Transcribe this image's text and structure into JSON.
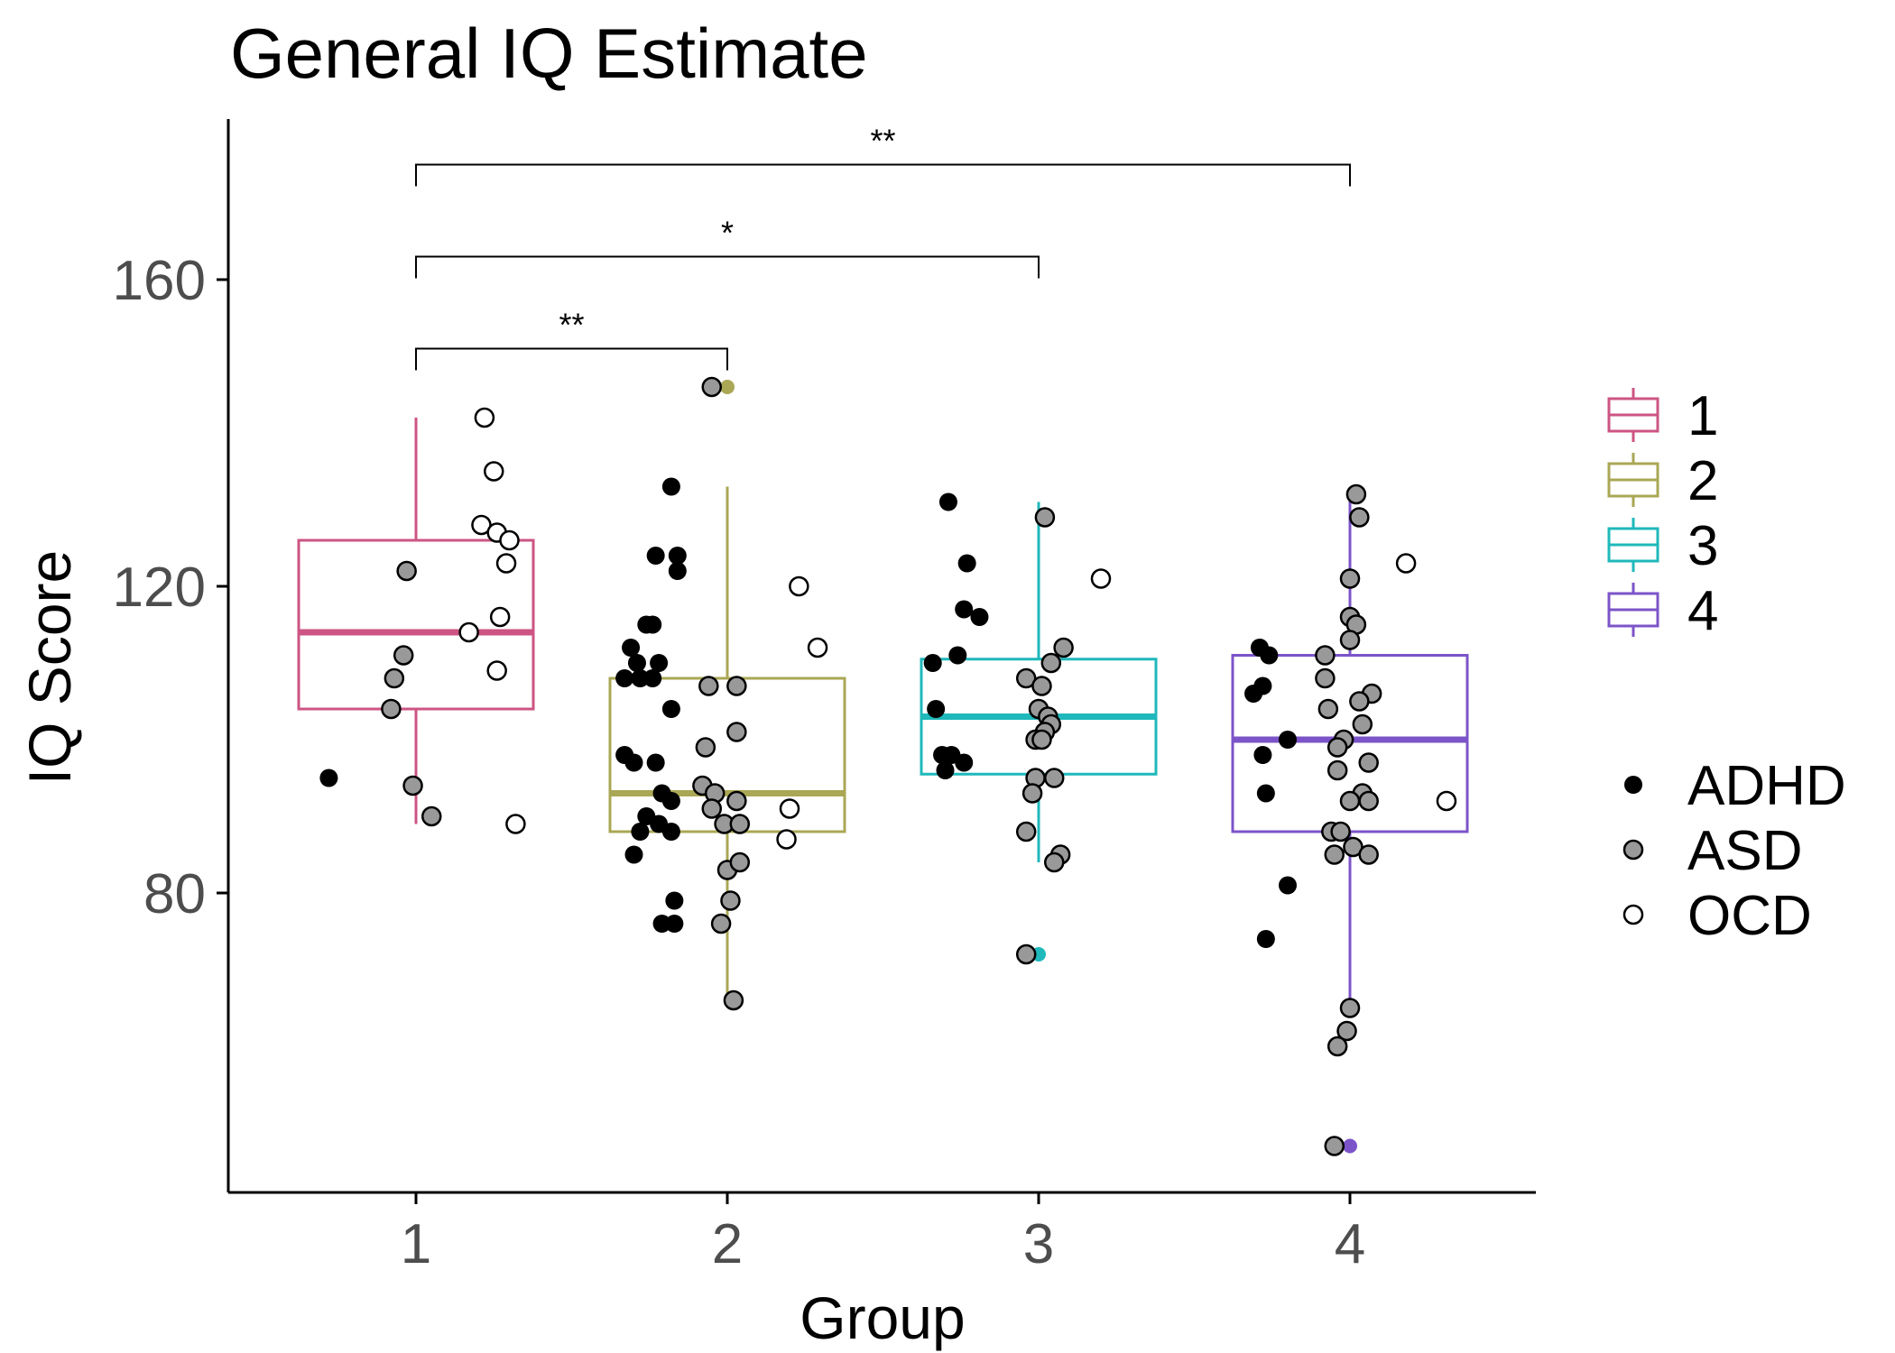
{
  "chart_data": {
    "type": "boxplot",
    "title": "General IQ Estimate",
    "xlabel": "Group",
    "ylabel": "IQ Score",
    "ylim": [
      42,
      181
    ],
    "yticks": [
      80,
      120,
      160
    ],
    "categories": [
      "1",
      "2",
      "3",
      "4"
    ],
    "colors": {
      "1": "#cc5583",
      "2": "#aaa755",
      "3": "#1fb8bb",
      "4": "#7c54c9"
    },
    "boxes": [
      {
        "group": "1",
        "q1": 104,
        "median": 114,
        "q3": 126,
        "whisker_low": 89,
        "whisker_high": 142,
        "outliers": []
      },
      {
        "group": "2",
        "q1": 88,
        "median": 93,
        "q3": 108,
        "whisker_low": 66,
        "whisker_high": 133,
        "outliers": [
          146
        ]
      },
      {
        "group": "3",
        "q1": 95.5,
        "median": 103,
        "q3": 110.5,
        "whisker_low": 84,
        "whisker_high": 131,
        "outliers": [
          72
        ]
      },
      {
        "group": "4",
        "q1": 88,
        "median": 100,
        "q3": 111,
        "whisker_low": 65,
        "whisker_high": 132,
        "outliers": [
          47
        ]
      }
    ],
    "diagnosis_styles": {
      "ADHD": "#000000",
      "ASD": "#999999",
      "OCD": "#ffffff"
    },
    "points": [
      {
        "x": 0.72,
        "y": 95,
        "dx": "ADHD"
      },
      {
        "x": 0.97,
        "y": 122,
        "dx": "ASD"
      },
      {
        "x": 0.96,
        "y": 111,
        "dx": "ASD"
      },
      {
        "x": 0.93,
        "y": 108,
        "dx": "ASD"
      },
      {
        "x": 0.92,
        "y": 104,
        "dx": "ASD"
      },
      {
        "x": 0.99,
        "y": 94,
        "dx": "ASD"
      },
      {
        "x": 1.05,
        "y": 90,
        "dx": "ASD"
      },
      {
        "x": 1.22,
        "y": 142,
        "dx": "OCD"
      },
      {
        "x": 1.25,
        "y": 135,
        "dx": "OCD"
      },
      {
        "x": 1.21,
        "y": 128,
        "dx": "OCD"
      },
      {
        "x": 1.26,
        "y": 127,
        "dx": "OCD"
      },
      {
        "x": 1.3,
        "y": 126,
        "dx": "OCD"
      },
      {
        "x": 1.29,
        "y": 123,
        "dx": "OCD"
      },
      {
        "x": 1.27,
        "y": 116,
        "dx": "OCD"
      },
      {
        "x": 1.17,
        "y": 114,
        "dx": "OCD"
      },
      {
        "x": 1.26,
        "y": 109,
        "dx": "OCD"
      },
      {
        "x": 1.32,
        "y": 89,
        "dx": "OCD"
      },
      {
        "x": 1.82,
        "y": 133,
        "dx": "ADHD"
      },
      {
        "x": 1.77,
        "y": 124,
        "dx": "ADHD"
      },
      {
        "x": 1.84,
        "y": 124,
        "dx": "ADHD"
      },
      {
        "x": 1.84,
        "y": 122,
        "dx": "ADHD"
      },
      {
        "x": 1.74,
        "y": 115,
        "dx": "ADHD"
      },
      {
        "x": 1.76,
        "y": 115,
        "dx": "ADHD"
      },
      {
        "x": 1.69,
        "y": 112,
        "dx": "ADHD"
      },
      {
        "x": 1.71,
        "y": 110,
        "dx": "ADHD"
      },
      {
        "x": 1.78,
        "y": 110,
        "dx": "ADHD"
      },
      {
        "x": 1.67,
        "y": 108,
        "dx": "ADHD"
      },
      {
        "x": 1.72,
        "y": 108,
        "dx": "ADHD"
      },
      {
        "x": 1.76,
        "y": 108,
        "dx": "ADHD"
      },
      {
        "x": 1.82,
        "y": 104,
        "dx": "ADHD"
      },
      {
        "x": 1.67,
        "y": 98,
        "dx": "ADHD"
      },
      {
        "x": 1.7,
        "y": 97,
        "dx": "ADHD"
      },
      {
        "x": 1.77,
        "y": 97,
        "dx": "ADHD"
      },
      {
        "x": 1.79,
        "y": 93,
        "dx": "ADHD"
      },
      {
        "x": 1.82,
        "y": 92,
        "dx": "ADHD"
      },
      {
        "x": 1.74,
        "y": 90,
        "dx": "ADHD"
      },
      {
        "x": 1.78,
        "y": 89,
        "dx": "ADHD"
      },
      {
        "x": 1.72,
        "y": 88,
        "dx": "ADHD"
      },
      {
        "x": 1.82,
        "y": 88,
        "dx": "ADHD"
      },
      {
        "x": 1.7,
        "y": 85,
        "dx": "ADHD"
      },
      {
        "x": 1.83,
        "y": 79,
        "dx": "ADHD"
      },
      {
        "x": 1.79,
        "y": 76,
        "dx": "ADHD"
      },
      {
        "x": 1.83,
        "y": 76,
        "dx": "ADHD"
      },
      {
        "x": 1.95,
        "y": 146,
        "dx": "ASD"
      },
      {
        "x": 1.94,
        "y": 107,
        "dx": "ASD"
      },
      {
        "x": 1.93,
        "y": 99,
        "dx": "ASD"
      },
      {
        "x": 1.92,
        "y": 94,
        "dx": "ASD"
      },
      {
        "x": 1.96,
        "y": 93,
        "dx": "ASD"
      },
      {
        "x": 1.95,
        "y": 91,
        "dx": "ASD"
      },
      {
        "x": 1.99,
        "y": 89,
        "dx": "ASD"
      },
      {
        "x": 2.0,
        "y": 83,
        "dx": "ASD"
      },
      {
        "x": 2.01,
        "y": 79,
        "dx": "ASD"
      },
      {
        "x": 1.98,
        "y": 76,
        "dx": "ASD"
      },
      {
        "x": 2.02,
        "y": 66,
        "dx": "ASD"
      },
      {
        "x": 2.03,
        "y": 107,
        "dx": "ASD"
      },
      {
        "x": 2.03,
        "y": 101,
        "dx": "ASD"
      },
      {
        "x": 2.03,
        "y": 92,
        "dx": "ASD"
      },
      {
        "x": 2.04,
        "y": 89,
        "dx": "ASD"
      },
      {
        "x": 2.04,
        "y": 84,
        "dx": "ASD"
      },
      {
        "x": 2.23,
        "y": 120,
        "dx": "OCD"
      },
      {
        "x": 2.29,
        "y": 112,
        "dx": "OCD"
      },
      {
        "x": 2.2,
        "y": 91,
        "dx": "OCD"
      },
      {
        "x": 2.19,
        "y": 87,
        "dx": "OCD"
      },
      {
        "x": 2.71,
        "y": 131,
        "dx": "ADHD"
      },
      {
        "x": 2.77,
        "y": 123,
        "dx": "ADHD"
      },
      {
        "x": 2.76,
        "y": 117,
        "dx": "ADHD"
      },
      {
        "x": 2.81,
        "y": 116,
        "dx": "ADHD"
      },
      {
        "x": 2.74,
        "y": 111,
        "dx": "ADHD"
      },
      {
        "x": 2.66,
        "y": 110,
        "dx": "ADHD"
      },
      {
        "x": 2.67,
        "y": 104,
        "dx": "ADHD"
      },
      {
        "x": 2.69,
        "y": 98,
        "dx": "ADHD"
      },
      {
        "x": 2.72,
        "y": 98,
        "dx": "ADHD"
      },
      {
        "x": 2.76,
        "y": 97,
        "dx": "ADHD"
      },
      {
        "x": 2.7,
        "y": 96,
        "dx": "ADHD"
      },
      {
        "x": 3.02,
        "y": 129,
        "dx": "ASD"
      },
      {
        "x": 3.08,
        "y": 112,
        "dx": "ASD"
      },
      {
        "x": 3.04,
        "y": 110,
        "dx": "ASD"
      },
      {
        "x": 2.96,
        "y": 108,
        "dx": "ASD"
      },
      {
        "x": 3.01,
        "y": 107,
        "dx": "ASD"
      },
      {
        "x": 3.0,
        "y": 104,
        "dx": "ASD"
      },
      {
        "x": 3.03,
        "y": 103,
        "dx": "ASD"
      },
      {
        "x": 3.04,
        "y": 102,
        "dx": "ASD"
      },
      {
        "x": 3.02,
        "y": 101,
        "dx": "ASD"
      },
      {
        "x": 2.99,
        "y": 100,
        "dx": "ASD"
      },
      {
        "x": 3.01,
        "y": 100,
        "dx": "ASD"
      },
      {
        "x": 2.99,
        "y": 95,
        "dx": "ASD"
      },
      {
        "x": 3.05,
        "y": 95,
        "dx": "ASD"
      },
      {
        "x": 2.98,
        "y": 93,
        "dx": "ASD"
      },
      {
        "x": 2.96,
        "y": 88,
        "dx": "ASD"
      },
      {
        "x": 3.07,
        "y": 85,
        "dx": "ASD"
      },
      {
        "x": 3.05,
        "y": 84,
        "dx": "ASD"
      },
      {
        "x": 2.96,
        "y": 72,
        "dx": "ASD"
      },
      {
        "x": 3.2,
        "y": 121,
        "dx": "OCD"
      },
      {
        "x": 3.71,
        "y": 112,
        "dx": "ADHD"
      },
      {
        "x": 3.74,
        "y": 111,
        "dx": "ADHD"
      },
      {
        "x": 3.72,
        "y": 107,
        "dx": "ADHD"
      },
      {
        "x": 3.69,
        "y": 106,
        "dx": "ADHD"
      },
      {
        "x": 3.8,
        "y": 100,
        "dx": "ADHD"
      },
      {
        "x": 3.72,
        "y": 98,
        "dx": "ADHD"
      },
      {
        "x": 3.73,
        "y": 93,
        "dx": "ADHD"
      },
      {
        "x": 3.8,
        "y": 81,
        "dx": "ADHD"
      },
      {
        "x": 3.73,
        "y": 74,
        "dx": "ADHD"
      },
      {
        "x": 4.02,
        "y": 132,
        "dx": "ASD"
      },
      {
        "x": 4.03,
        "y": 129,
        "dx": "ASD"
      },
      {
        "x": 4.0,
        "y": 121,
        "dx": "ASD"
      },
      {
        "x": 4.0,
        "y": 116,
        "dx": "ASD"
      },
      {
        "x": 4.02,
        "y": 115,
        "dx": "ASD"
      },
      {
        "x": 4.0,
        "y": 113,
        "dx": "ASD"
      },
      {
        "x": 3.92,
        "y": 111,
        "dx": "ASD"
      },
      {
        "x": 3.92,
        "y": 108,
        "dx": "ASD"
      },
      {
        "x": 4.07,
        "y": 106,
        "dx": "ASD"
      },
      {
        "x": 4.03,
        "y": 105,
        "dx": "ASD"
      },
      {
        "x": 3.93,
        "y": 104,
        "dx": "ASD"
      },
      {
        "x": 4.04,
        "y": 102,
        "dx": "ASD"
      },
      {
        "x": 3.98,
        "y": 100,
        "dx": "ASD"
      },
      {
        "x": 3.96,
        "y": 99,
        "dx": "ASD"
      },
      {
        "x": 4.06,
        "y": 97,
        "dx": "ASD"
      },
      {
        "x": 3.96,
        "y": 96,
        "dx": "ASD"
      },
      {
        "x": 4.04,
        "y": 93,
        "dx": "ASD"
      },
      {
        "x": 4.0,
        "y": 92,
        "dx": "ASD"
      },
      {
        "x": 4.06,
        "y": 92,
        "dx": "ASD"
      },
      {
        "x": 3.94,
        "y": 88,
        "dx": "ASD"
      },
      {
        "x": 3.97,
        "y": 88,
        "dx": "ASD"
      },
      {
        "x": 4.01,
        "y": 86,
        "dx": "ASD"
      },
      {
        "x": 3.95,
        "y": 85,
        "dx": "ASD"
      },
      {
        "x": 4.06,
        "y": 85,
        "dx": "ASD"
      },
      {
        "x": 4.0,
        "y": 65,
        "dx": "ASD"
      },
      {
        "x": 3.99,
        "y": 62,
        "dx": "ASD"
      },
      {
        "x": 3.96,
        "y": 60,
        "dx": "ASD"
      },
      {
        "x": 3.95,
        "y": 47,
        "dx": "ASD"
      },
      {
        "x": 4.18,
        "y": 123,
        "dx": "OCD"
      },
      {
        "x": 4.31,
        "y": 92,
        "dx": "OCD"
      }
    ],
    "significance": [
      {
        "from": 1,
        "to": 2,
        "y": 151,
        "label": "**"
      },
      {
        "from": 1,
        "to": 3,
        "y": 163,
        "label": "*"
      },
      {
        "from": 1,
        "to": 4,
        "y": 175,
        "label": "**"
      }
    ],
    "legend_group": [
      "1",
      "2",
      "3",
      "4"
    ],
    "legend_dx": [
      "ADHD",
      "ASD",
      "OCD"
    ]
  }
}
